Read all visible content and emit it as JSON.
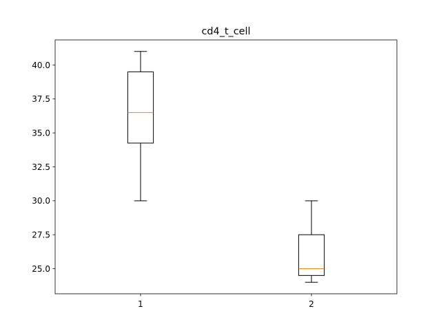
{
  "chart_data": {
    "type": "boxplot",
    "title": "cd4_t_cell",
    "xlabel": "",
    "ylabel": "",
    "ylim": [
      23.15,
      41.85
    ],
    "xlim": [
      0.5,
      2.5
    ],
    "grid": false,
    "categories": [
      "1",
      "2"
    ],
    "boxes": [
      {
        "category": "1",
        "whisker_low": 30.0,
        "q1": 34.25,
        "median": 36.5,
        "q3": 39.5,
        "whisker_high": 41.0
      },
      {
        "category": "2",
        "whisker_low": 24.0,
        "q1": 24.5,
        "median": 25.0,
        "q3": 27.5,
        "whisker_high": 30.0
      }
    ],
    "yticks": [
      25.0,
      27.5,
      30.0,
      32.5,
      35.0,
      37.5,
      40.0
    ],
    "ytick_labels": [
      "25.0",
      "27.5",
      "30.0",
      "32.5",
      "35.0",
      "37.5",
      "40.0"
    ],
    "xticks": [
      1,
      2
    ],
    "xtick_labels": [
      "1",
      "2"
    ],
    "colors": {
      "box": "#000000",
      "median": "#ff7f0e",
      "axes": "#000000",
      "background": "#ffffff"
    }
  }
}
